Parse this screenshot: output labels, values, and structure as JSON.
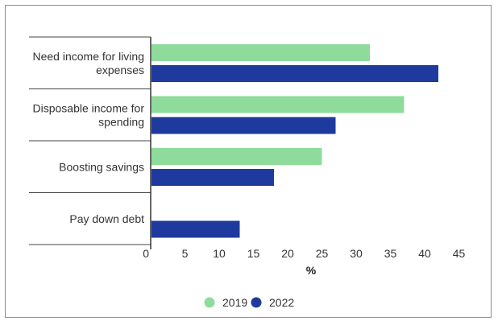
{
  "chart_data": {
    "type": "bar",
    "orientation": "horizontal",
    "categories": [
      [
        "Need income for living",
        "expenses"
      ],
      [
        "Disposable income for",
        "spending"
      ],
      [
        "Boosting savings"
      ],
      [
        "Pay down debt"
      ]
    ],
    "series": [
      {
        "name": "2019",
        "color": "#8fdb9b",
        "values": [
          32,
          37,
          25,
          null
        ]
      },
      {
        "name": "2022",
        "color": "#1f3a9e",
        "values": [
          42,
          27,
          18,
          13
        ]
      }
    ],
    "xlabel": "%",
    "xlim": [
      0,
      45
    ],
    "xticks": [
      0,
      5,
      10,
      15,
      20,
      25,
      30,
      35,
      40,
      45
    ],
    "grid": false,
    "legend_position": "bottom-center"
  }
}
